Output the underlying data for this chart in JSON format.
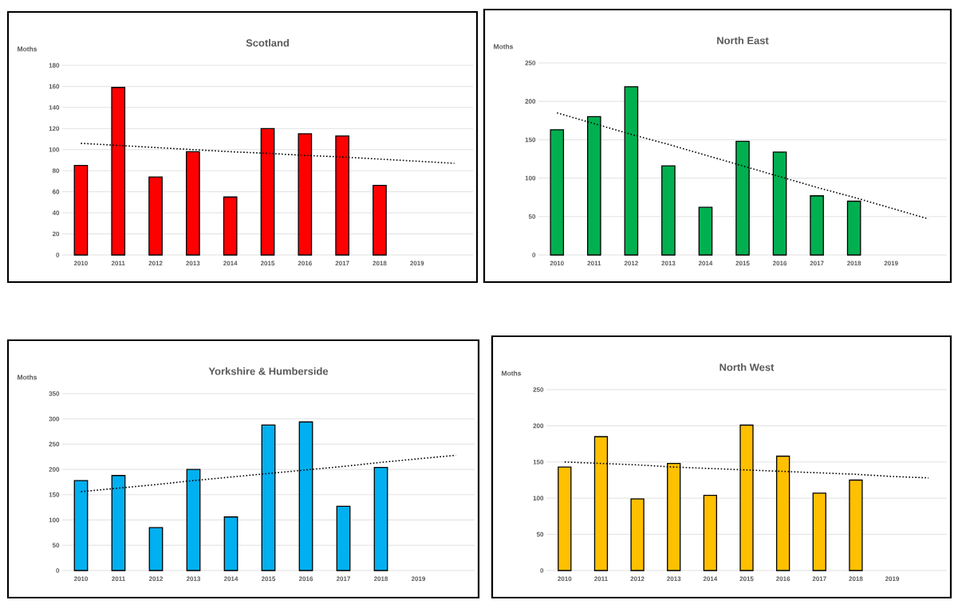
{
  "chart_data": [
    {
      "type": "bar",
      "title": "Scotland",
      "ylabel": "Moths",
      "categories": [
        "2010",
        "2011",
        "2012",
        "2013",
        "2014",
        "2015",
        "2016",
        "2017",
        "2018",
        "2019",
        null
      ],
      "ylim": [
        0,
        180
      ],
      "yticks": [
        0,
        20,
        40,
        60,
        80,
        100,
        120,
        140,
        160,
        180
      ],
      "grid": "y",
      "series": [
        {
          "color": "#ff0000",
          "values": [
            85,
            159,
            74,
            98,
            55,
            120,
            115,
            113,
            66,
            null,
            null
          ]
        },
        {
          "type": "line",
          "color": "#000000",
          "line_style": "dotted",
          "marker": "none",
          "values": [
            106,
            104,
            102,
            100,
            98,
            96.5,
            94.5,
            93,
            91,
            89,
            87
          ]
        }
      ]
    },
    {
      "type": "bar",
      "title": "North East",
      "ylabel": "Moths",
      "categories": [
        "2010",
        "2011",
        "2012",
        "2013",
        "2014",
        "2015",
        "2016",
        "2017",
        "2018",
        "2019",
        null
      ],
      "ylim": [
        0,
        250
      ],
      "yticks": [
        0,
        50,
        100,
        150,
        200,
        250
      ],
      "grid": "y",
      "series": [
        {
          "color": "#00b050",
          "values": [
            163,
            180,
            219,
            116,
            62,
            148,
            134,
            77,
            70,
            null,
            null
          ]
        },
        {
          "type": "line",
          "color": "#000000",
          "line_style": "dotted",
          "marker": "none",
          "values": [
            185,
            171,
            157,
            144,
            130,
            116,
            102,
            88,
            75,
            61,
            47
          ]
        }
      ]
    },
    {
      "type": "bar",
      "title": "Yorkshire & Humberside",
      "ylabel": "Moths",
      "categories": [
        "2010",
        "2011",
        "2012",
        "2013",
        "2014",
        "2015",
        "2016",
        "2017",
        "2018",
        "2019",
        null
      ],
      "ylim": [
        0,
        350
      ],
      "yticks": [
        0,
        50,
        100,
        150,
        200,
        250,
        300,
        350
      ],
      "grid": "y",
      "series": [
        {
          "color": "#00b0f0",
          "values": [
            178,
            188,
            85,
            200,
            106,
            288,
            294,
            127,
            204,
            null,
            null
          ]
        },
        {
          "type": "line",
          "color": "#000000",
          "line_style": "dotted",
          "marker": "none",
          "values": [
            156,
            163,
            170,
            178,
            185,
            192,
            199,
            206,
            214,
            221,
            228
          ]
        }
      ]
    },
    {
      "type": "bar",
      "title": "North West",
      "ylabel": "Moths",
      "categories": [
        "2010",
        "2011",
        "2012",
        "2013",
        "2014",
        "2015",
        "2016",
        "2017",
        "2018",
        "2019",
        null
      ],
      "ylim": [
        0,
        250
      ],
      "yticks": [
        0,
        50,
        100,
        150,
        200,
        250
      ],
      "grid": "y",
      "series": [
        {
          "color": "#ffc000",
          "values": [
            143,
            185,
            99,
            148,
            104,
            201,
            158,
            107,
            125,
            null,
            null
          ]
        },
        {
          "type": "line",
          "color": "#000000",
          "line_style": "dotted",
          "marker": "none",
          "values": [
            150,
            148,
            146,
            143,
            141,
            139,
            137,
            135,
            133,
            130,
            128
          ]
        }
      ]
    }
  ]
}
